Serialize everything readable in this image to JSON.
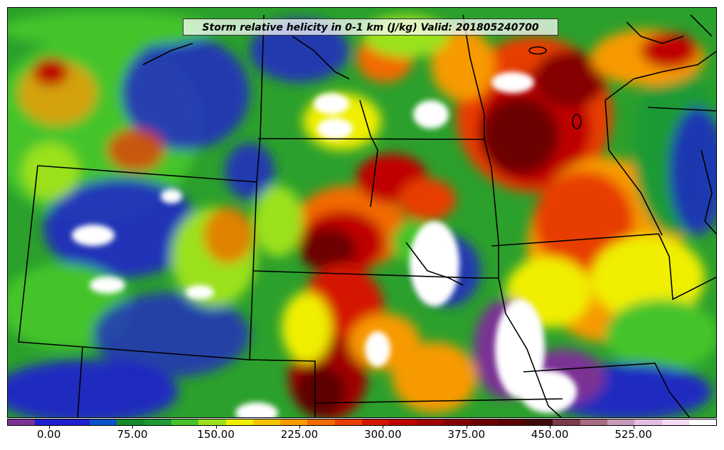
{
  "title": "Storm relative helicity in 0-1 km (J/kg) Valid: 201805240700",
  "colorbar": {
    "colors": [
      "#7b3294",
      "#1f1fcf",
      "#1f1fcf",
      "#0a52c8",
      "#138a2c",
      "#1e9a34",
      "#45c42a",
      "#9be11e",
      "#f0ef00",
      "#f5c400",
      "#f79a00",
      "#f36a00",
      "#e83d00",
      "#d41700",
      "#bf0000",
      "#a00000",
      "#850000",
      "#6d0000",
      "#5b0000",
      "#3f0a0a",
      "#7a3b4b",
      "#a86b83",
      "#c79ab9",
      "#e4bde5",
      "#f4dcf4",
      "#ffffff"
    ],
    "tick_labels": [
      "0.00",
      "75.00",
      "150.00",
      "225.00",
      "300.00",
      "375.00",
      "450.00",
      "525.00"
    ],
    "tick_values": [
      0,
      75,
      150,
      225,
      300,
      375,
      450,
      525
    ],
    "range": [
      -37.5,
      600
    ]
  }
}
